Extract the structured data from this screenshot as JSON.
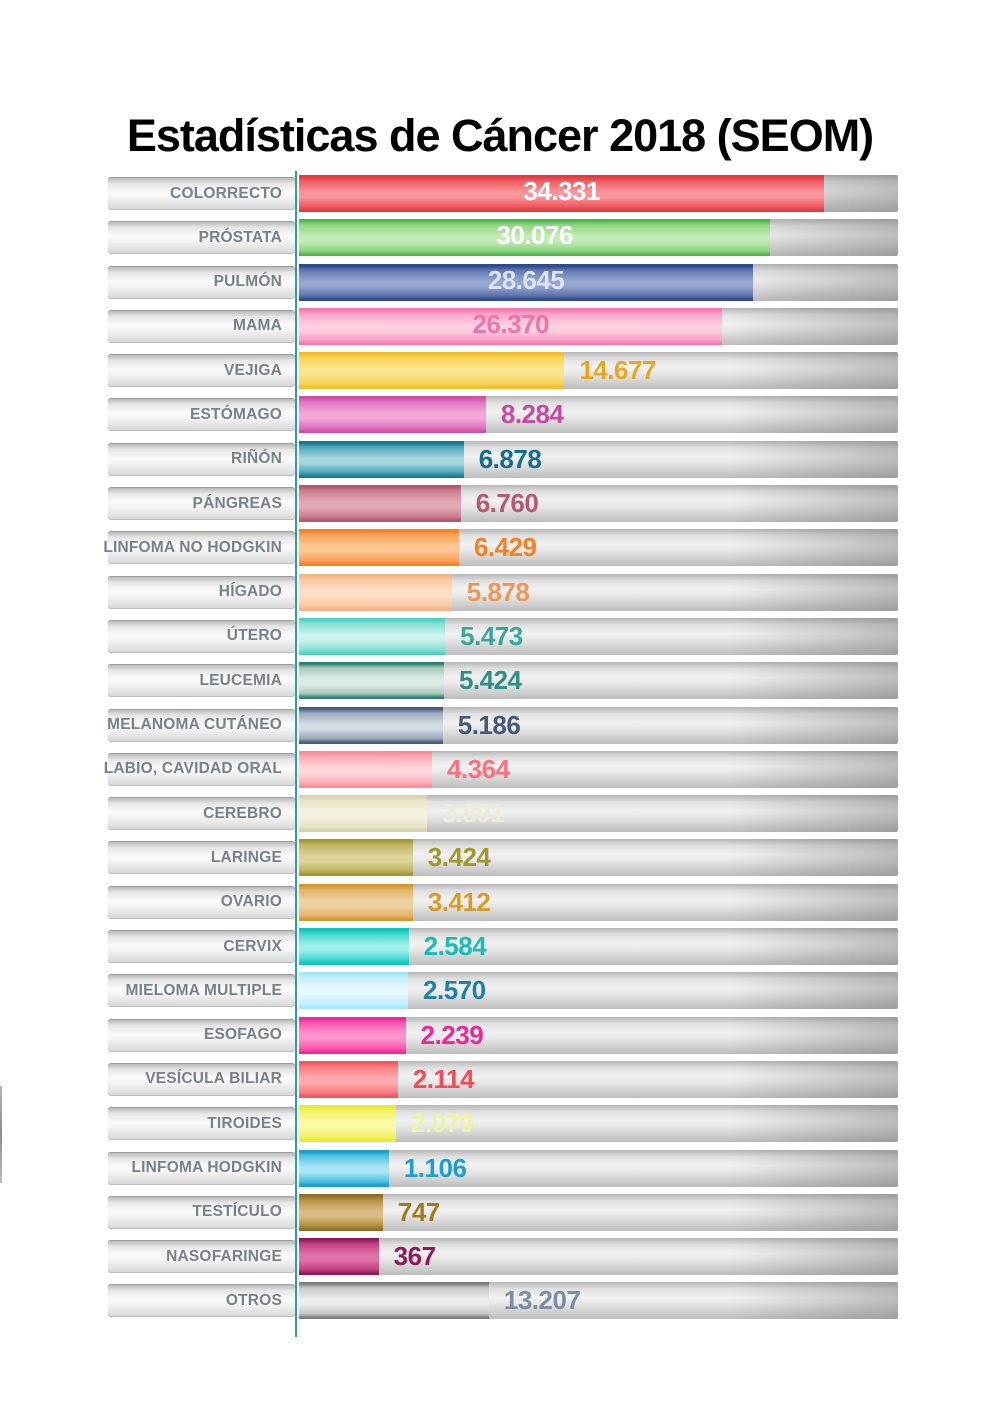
{
  "title": "Estadísticas de Cáncer 2018 (SEOM)",
  "style": {
    "baseline_color": "#2aa0a2",
    "label_text_color": "#76818d",
    "title_color": "#000000"
  },
  "chart_data": {
    "type": "bar",
    "orientation": "horizontal",
    "title": "Estadísticas de Cáncer 2018 (SEOM)",
    "legend": "none",
    "grid": "off",
    "categories": [
      "COLORRECTO",
      "PRÓSTATA",
      "PULMÓN",
      "MAMA",
      "VEJIGA",
      "ESTÓMAGO",
      "RIÑÓN",
      "PÁNGREAS",
      "LINFOMA NO HODGKIN",
      "HÍGADO",
      "ÚTERO",
      "LEUCEMIA",
      "MELANOMA CUTÁNEO",
      "LABIO, CAVIDAD ORAL",
      "CEREBRO",
      "LARINGE",
      "OVARIO",
      "CERVIX",
      "MIELOMA MULTIPLE",
      "ESOFAGO",
      "VESÍCULA BILIAR",
      "TIROIDES",
      "LINFOMA HODGKIN",
      "TESTÍCULO",
      "NASOFARINGE",
      "OTROS"
    ],
    "values": [
      34331,
      30076,
      28645,
      26370,
      14677,
      8284,
      6878,
      6760,
      6429,
      5878,
      5473,
      5424,
      5186,
      4364,
      3891,
      3424,
      3412,
      2584,
      2570,
      2239,
      2114,
      2079,
      1106,
      747,
      367,
      13207
    ],
    "items": [
      {
        "label": "COLORRECTO",
        "value": 34331,
        "value_label": "34.331",
        "bar_pct": 87.7,
        "value_position": "inside",
        "colors": {
          "edge": "#e23a42",
          "mid": "#f05a60",
          "light": "#f8959a",
          "text": "#ffffff"
        }
      },
      {
        "label": "PRÓSTATA",
        "value": 30076,
        "value_label": "30.076",
        "bar_pct": 78.7,
        "value_position": "inside",
        "colors": {
          "edge": "#4cb748",
          "mid": "#8fd683",
          "light": "#c2ecb4",
          "text": "#ffffff"
        }
      },
      {
        "label": "PULMÓN",
        "value": 28645,
        "value_label": "28.645",
        "bar_pct": 75.8,
        "value_position": "inside",
        "colors": {
          "edge": "#2c4a8c",
          "mid": "#5e74ad",
          "light": "#96a6cf",
          "text": "#dde2f2"
        }
      },
      {
        "label": "MAMA",
        "value": 26370,
        "value_label": "26.370",
        "bar_pct": 70.7,
        "value_position": "inside",
        "colors": {
          "edge": "#f478ae",
          "mid": "#f9a3c8",
          "light": "#fdd0e2",
          "text": "#ee74a9"
        }
      },
      {
        "label": "VEJIGA",
        "value": 14677,
        "value_label": "14.677",
        "bar_pct": 44.3,
        "value_position": "outside",
        "colors": {
          "edge": "#eebf2b",
          "mid": "#f7d456",
          "light": "#fbe48d",
          "text": "#e7a821"
        }
      },
      {
        "label": "ESTÓMAGO",
        "value": 8284,
        "value_label": "8.284",
        "bar_pct": 31.2,
        "value_position": "outside",
        "colors": {
          "edge": "#cf4fa6",
          "mid": "#e075c0",
          "light": "#f2a8d8",
          "text": "#ca48a4"
        }
      },
      {
        "label": "RIÑÓN",
        "value": 6878,
        "value_label": "6.878",
        "bar_pct": 27.5,
        "value_position": "outside",
        "colors": {
          "edge": "#17768f",
          "mid": "#4aa4ba",
          "light": "#a5d6de",
          "text": "#136d8d"
        }
      },
      {
        "label": "PÁNGREAS",
        "value": 6760,
        "value_label": "6.760",
        "bar_pct": 27.0,
        "value_position": "outside",
        "colors": {
          "edge": "#b7556e",
          "mid": "#c97f90",
          "light": "#e2aab6",
          "text": "#ba5670"
        }
      },
      {
        "label": "LINFOMA NO HODGKIN",
        "value": 6429,
        "value_label": "6.429",
        "bar_pct": 26.7,
        "value_position": "outside",
        "colors": {
          "edge": "#f58220",
          "mid": "#f9a357",
          "light": "#fcc792",
          "text": "#f58220"
        }
      },
      {
        "label": "HÍGADO",
        "value": 5878,
        "value_label": "5.878",
        "bar_pct": 25.5,
        "value_position": "outside",
        "colors": {
          "edge": "#f6b486",
          "mid": "#f9c9a2",
          "light": "#fcdfc4",
          "text": "#ef9658"
        }
      },
      {
        "label": "ÚTERO",
        "value": 5473,
        "value_label": "5.473",
        "bar_pct": 24.4,
        "value_position": "outside",
        "colors": {
          "edge": "#4fd0c2",
          "mid": "#8ae0d5",
          "light": "#ccf3ed",
          "text": "#39a79d"
        }
      },
      {
        "label": "LEUCEMIA",
        "value": 5424,
        "value_label": "5.424",
        "bar_pct": 24.2,
        "value_position": "outside",
        "colors": {
          "edge": "#2f8073",
          "mid": "#a9cabc",
          "light": "#ddece2",
          "text": "#2f8e85"
        }
      },
      {
        "label": "MELANOMA CUTÁNEO",
        "value": 5186,
        "value_label": "5.186",
        "bar_pct": 24.0,
        "value_position": "outside",
        "colors": {
          "edge": "#475b7c",
          "mid": "#9aa8ba",
          "light": "#d3dae2",
          "text": "#47597a"
        }
      },
      {
        "label": "LABIO, CAVIDAD ORAL",
        "value": 4364,
        "value_label": "4.364",
        "bar_pct": 22.2,
        "value_position": "outside",
        "colors": {
          "edge": "#fa8d98",
          "mid": "#fdacb6",
          "light": "#ffd6da",
          "text": "#fb6f7f"
        }
      },
      {
        "label": "CEREBRO",
        "value": 3891,
        "value_label": "3.891",
        "bar_pct": 21.3,
        "value_position": "outside",
        "colors": {
          "edge": "#d9d3a9",
          "mid": "#e9e5c7",
          "light": "#f4f1e0",
          "text": "#efecd8"
        }
      },
      {
        "label": "LARINGE",
        "value": 3424,
        "value_label": "3.424",
        "bar_pct": 19.0,
        "value_position": "outside",
        "colors": {
          "edge": "#a3982e",
          "mid": "#c0b562",
          "light": "#dcd49a",
          "text": "#a3982e"
        }
      },
      {
        "label": "OVARIO",
        "value": 3412,
        "value_label": "3.412",
        "bar_pct": 19.0,
        "value_position": "outside",
        "colors": {
          "edge": "#d6962e",
          "mid": "#e2b368",
          "light": "#f0d2a2",
          "text": "#dd9a22"
        }
      },
      {
        "label": "CERVIX",
        "value": 2584,
        "value_label": "2.584",
        "bar_pct": 18.3,
        "value_position": "outside",
        "colors": {
          "edge": "#10c5bd",
          "mid": "#3fd8d0",
          "light": "#9ff0ea",
          "text": "#14bdb6"
        }
      },
      {
        "label": "MIELOMA MULTIPLE",
        "value": 2570,
        "value_label": "2.570",
        "bar_pct": 18.2,
        "value_position": "outside",
        "colors": {
          "edge": "#a5e6f6",
          "mid": "#c3effb",
          "light": "#e6f9fe",
          "text": "#1c80a8"
        }
      },
      {
        "label": "ESOFAGO",
        "value": 2239,
        "value_label": "2.239",
        "bar_pct": 17.8,
        "value_position": "outside",
        "colors": {
          "edge": "#f02598",
          "mid": "#f857b0",
          "light": "#fd93cc",
          "text": "#f02598"
        }
      },
      {
        "label": "VESÍCULA BILIAR",
        "value": 2114,
        "value_label": "2.114",
        "bar_pct": 16.5,
        "value_position": "outside",
        "colors": {
          "edge": "#f4555c",
          "mid": "#f97b80",
          "light": "#ffabae",
          "text": "#f64b55"
        }
      },
      {
        "label": "TIROIDES",
        "value": 2079,
        "value_label": "2.079",
        "bar_pct": 16.2,
        "value_position": "outside",
        "colors": {
          "edge": "#e9e934",
          "mid": "#f2f266",
          "light": "#fafaa6",
          "text": "#f0f2a4"
        }
      },
      {
        "label": "LINFOMA HODGKIN",
        "value": 1106,
        "value_label": "1.106",
        "bar_pct": 15.0,
        "value_position": "outside",
        "colors": {
          "edge": "#1a9dc8",
          "mid": "#4dc3e3",
          "light": "#abe5f5",
          "text": "#1b9ed0"
        }
      },
      {
        "label": "TESTÍCULO",
        "value": 747,
        "value_label": "747",
        "bar_pct": 14.0,
        "value_position": "outside",
        "colors": {
          "edge": "#8e6e27",
          "mid": "#b59240",
          "light": "#dabd85",
          "text": "#a17b1f"
        }
      },
      {
        "label": "NASOFARINGE",
        "value": 367,
        "value_label": "367",
        "bar_pct": 13.3,
        "value_position": "outside",
        "colors": {
          "edge": "#8d1b56",
          "mid": "#c04181",
          "light": "#e173aa",
          "text": "#8d1b56"
        }
      },
      {
        "label": "OTROS",
        "value": 13207,
        "value_label": "13.207",
        "bar_pct": 31.7,
        "value_position": "outside",
        "colors": {
          "edge": "#7d7d7d",
          "mid": "#c9c9c9",
          "light": "#ececec",
          "text": "#7b8fa1"
        }
      }
    ]
  }
}
